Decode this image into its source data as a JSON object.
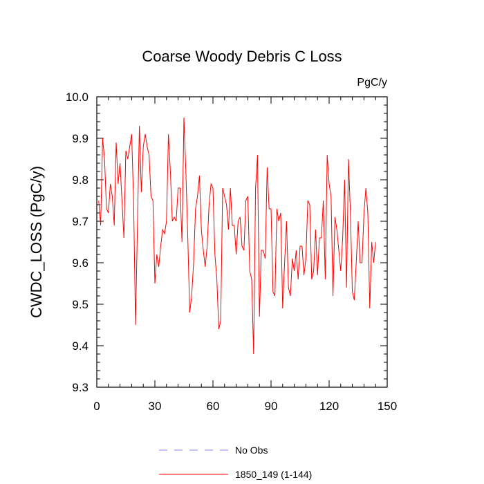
{
  "chart_data": {
    "type": "line",
    "title": "Coarse Woody Debris C Loss",
    "units_label": "PgC/y",
    "ylabel": "CWDC_LOSS  (PgC/y)",
    "xlabel": "",
    "xlim": [
      0,
      150
    ],
    "ylim": [
      9.3,
      10.0
    ],
    "x_ticks": [
      0,
      30,
      60,
      90,
      120,
      150
    ],
    "x_tick_labels": [
      "0",
      "30",
      "60",
      "90",
      "120",
      "150"
    ],
    "y_ticks": [
      9.3,
      9.4,
      9.5,
      9.6,
      9.7,
      9.8,
      9.9,
      10.0
    ],
    "y_tick_labels": [
      "9.3",
      "9.4",
      "9.5",
      "9.6",
      "9.7",
      "9.8",
      "9.9",
      "10.0"
    ],
    "grid": false,
    "legend_position": "bottom-center",
    "series": [
      {
        "name": "1850_149 (1-144)",
        "color": "#ff0000",
        "style": "solid",
        "x": [
          1,
          2,
          3,
          4,
          5,
          6,
          7,
          8,
          9,
          10,
          11,
          12,
          13,
          14,
          15,
          16,
          17,
          18,
          19,
          20,
          21,
          22,
          23,
          24,
          25,
          26,
          27,
          28,
          29,
          30,
          31,
          32,
          33,
          34,
          35,
          36,
          37,
          38,
          39,
          40,
          41,
          42,
          43,
          44,
          45,
          46,
          47,
          48,
          49,
          50,
          51,
          52,
          53,
          54,
          55,
          56,
          57,
          58,
          59,
          60,
          61,
          62,
          63,
          64,
          65,
          66,
          67,
          68,
          69,
          70,
          71,
          72,
          73,
          74,
          75,
          76,
          77,
          78,
          79,
          80,
          81,
          82,
          83,
          84,
          85,
          86,
          87,
          88,
          89,
          90,
          91,
          92,
          93,
          94,
          95,
          96,
          97,
          98,
          99,
          100,
          101,
          102,
          103,
          104,
          105,
          106,
          107,
          108,
          109,
          110,
          111,
          112,
          113,
          114,
          115,
          116,
          117,
          118,
          119,
          120,
          121,
          122,
          123,
          124,
          125,
          126,
          127,
          128,
          129,
          130,
          131,
          132,
          133,
          134,
          135,
          136,
          137,
          138,
          139,
          140,
          141,
          142,
          143,
          144
        ],
        "values": [
          9.75,
          9.69,
          9.9,
          9.85,
          9.73,
          9.72,
          9.79,
          9.76,
          9.69,
          9.89,
          9.79,
          9.84,
          9.75,
          9.66,
          9.87,
          9.85,
          9.88,
          9.91,
          9.75,
          9.45,
          9.69,
          9.93,
          9.77,
          9.88,
          9.91,
          9.88,
          9.86,
          9.76,
          9.75,
          9.55,
          9.62,
          9.59,
          9.64,
          9.68,
          9.67,
          9.7,
          9.91,
          9.82,
          9.7,
          9.71,
          9.7,
          9.78,
          9.78,
          9.65,
          9.95,
          9.82,
          9.66,
          9.48,
          9.52,
          9.6,
          9.73,
          9.76,
          9.81,
          9.68,
          9.63,
          9.59,
          9.64,
          9.74,
          9.79,
          9.78,
          9.62,
          9.56,
          9.44,
          9.46,
          9.78,
          9.76,
          9.74,
          9.68,
          9.78,
          9.69,
          9.69,
          9.62,
          9.7,
          9.71,
          9.64,
          9.63,
          9.75,
          9.76,
          9.58,
          9.56,
          9.38,
          9.78,
          9.86,
          9.47,
          9.63,
          9.63,
          9.61,
          9.83,
          9.73,
          9.73,
          9.53,
          9.52,
          9.73,
          9.7,
          9.72,
          9.49,
          9.6,
          9.7,
          9.54,
          9.52,
          9.61,
          9.58,
          9.63,
          9.56,
          9.64,
          9.64,
          9.57,
          9.61,
          9.75,
          9.74,
          9.56,
          9.58,
          9.68,
          9.57,
          9.66,
          9.66,
          9.75,
          9.56,
          9.86,
          9.79,
          9.76,
          9.52,
          9.71,
          9.68,
          9.63,
          9.58,
          9.66,
          9.8,
          9.54,
          9.85,
          9.72,
          9.53,
          9.51,
          9.6,
          9.7,
          9.6,
          9.6,
          9.72,
          9.78,
          9.72,
          9.49,
          9.65,
          9.6,
          9.65
        ]
      },
      {
        "name": "No Obs",
        "color": "#8080ff",
        "style": "dashed",
        "x": [],
        "values": []
      }
    ]
  }
}
